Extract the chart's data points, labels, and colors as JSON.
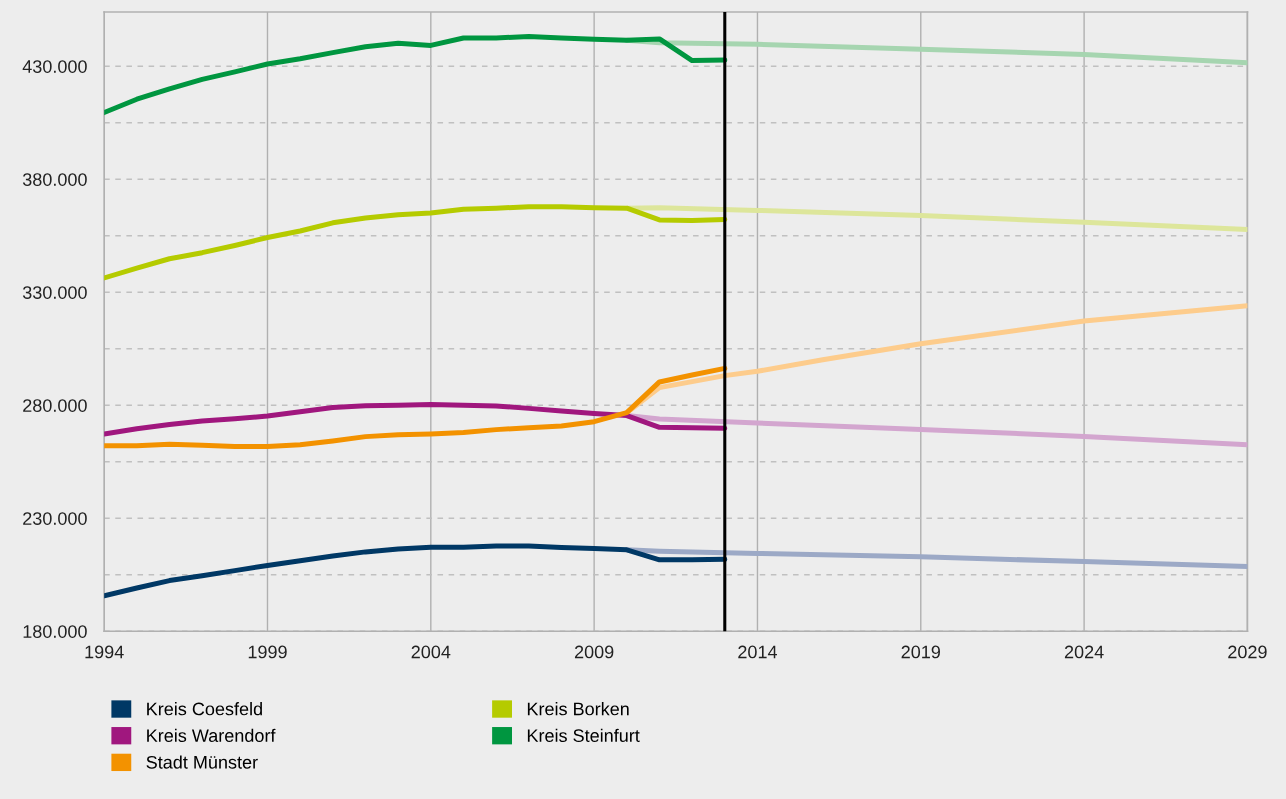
{
  "chart_data": {
    "type": "line",
    "x": [
      1994,
      1995,
      1996,
      1997,
      1998,
      1999,
      2000,
      2001,
      2002,
      2003,
      2004,
      2005,
      2006,
      2007,
      2008,
      2009,
      2010,
      2011,
      2012,
      2013
    ],
    "series": [
      {
        "color": "#9ca9c6",
        "x": [
          2010,
          2011,
          2014,
          2019,
          2024,
          2029
        ],
        "values": [
          216000,
          215400,
          214400,
          212900,
          210800,
          208600
        ]
      },
      {
        "color": "#d3a6cf",
        "x": [
          2010,
          2011,
          2014,
          2019,
          2024,
          2029
        ],
        "values": [
          275400,
          273900,
          272100,
          269300,
          266200,
          262500
        ]
      },
      {
        "color": "#fdcc8c",
        "x": [
          2010,
          2011,
          2013,
          2014,
          2016,
          2019,
          2024,
          2029
        ],
        "values": [
          276700,
          287800,
          293100,
          295000,
          300100,
          307200,
          317300,
          324000
        ]
      },
      {
        "color": "#dde69b",
        "x": [
          2010,
          2011,
          2014,
          2019,
          2024,
          2029
        ],
        "values": [
          367200,
          367400,
          366200,
          363900,
          361000,
          357800
        ]
      },
      {
        "color": "#a6d5b0",
        "x": [
          2010,
          2011,
          2014,
          2019,
          2024,
          2029
        ],
        "values": [
          441500,
          440400,
          439700,
          437500,
          435200,
          431500
        ]
      },
      {
        "name": "Kreis Coesfeld",
        "color": "#003865",
        "values": [
          195700,
          199100,
          202400,
          204500,
          206800,
          209100,
          211200,
          213300,
          215100,
          216400,
          217200,
          217200,
          217700,
          217700,
          217000,
          216600,
          216000,
          211600,
          211600,
          211800
        ]
      },
      {
        "name": "Kreis Warendorf",
        "color": "#a0177e",
        "values": [
          267300,
          269600,
          271500,
          273000,
          274000,
          275200,
          277100,
          279000,
          279800,
          280000,
          280300,
          280000,
          279700,
          278600,
          277400,
          276300,
          275400,
          270200,
          270000,
          269800
        ]
      },
      {
        "name": "Stadt Münster",
        "color": "#f39200",
        "values": [
          262100,
          262100,
          262700,
          262300,
          261700,
          261700,
          262500,
          264200,
          266100,
          266900,
          267300,
          267900,
          269200,
          270000,
          270800,
          272700,
          276700,
          290300,
          293400,
          296300
        ]
      },
      {
        "name": "Kreis Borken",
        "color": "#b5cb00",
        "values": [
          336300,
          340700,
          344800,
          347500,
          350700,
          354200,
          357100,
          360700,
          362800,
          364300,
          365100,
          366700,
          367200,
          367800,
          367800,
          367400,
          367200,
          362000,
          361700,
          362200
        ]
      },
      {
        "name": "Kreis Steinfurt",
        "color": "#009640",
        "values": [
          409500,
          415400,
          420000,
          424200,
          427500,
          431000,
          433300,
          436000,
          438600,
          440200,
          439200,
          442500,
          442500,
          443200,
          442500,
          441900,
          441500,
          442100,
          432500,
          432700
        ]
      }
    ],
    "xlim": [
      1994,
      2029
    ],
    "xticks": [
      1994,
      1999,
      2004,
      2009,
      2014,
      2019,
      2024,
      2029
    ],
    "ylim": [
      180000,
      454000
    ],
    "yticks": [
      {
        "value": 180000,
        "label": "180.000"
      },
      {
        "value": 205000,
        "label": null
      },
      {
        "value": 230000,
        "label": "230.000"
      },
      {
        "value": 255000,
        "label": null
      },
      {
        "value": 280000,
        "label": "280.000"
      },
      {
        "value": 305000,
        "label": null
      },
      {
        "value": 330000,
        "label": "330.000"
      },
      {
        "value": 355000,
        "label": null
      },
      {
        "value": 380000,
        "label": "380.000"
      },
      {
        "value": 405000,
        "label": null
      },
      {
        "value": 430000,
        "label": "430.000"
      }
    ],
    "ref_lines": [
      {
        "axis": "x",
        "value": 2013,
        "color": "#000000"
      }
    ],
    "grid": true,
    "legend": "bottom",
    "marker": "none",
    "line_style": "solid"
  }
}
